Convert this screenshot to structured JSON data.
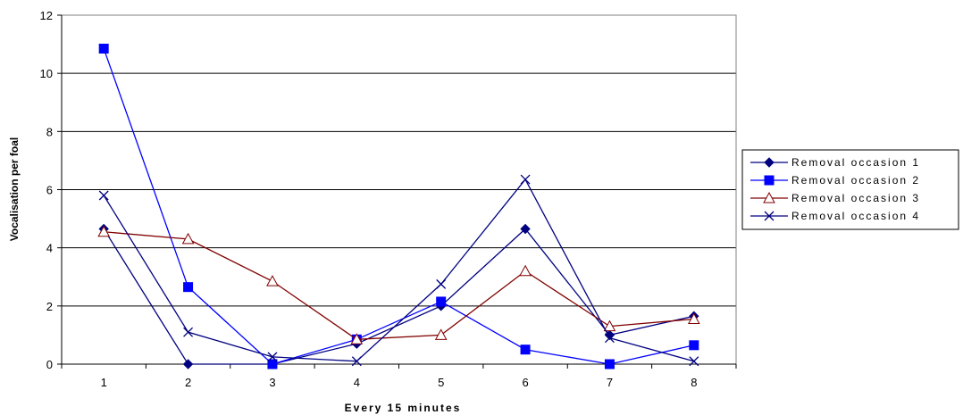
{
  "chart_data": {
    "type": "line",
    "title": "",
    "xlabel": "Every 15 minutes",
    "ylabel": "Vocalisation per foal",
    "categories": [
      "1",
      "2",
      "3",
      "4",
      "5",
      "6",
      "7",
      "8"
    ],
    "yticks": [
      "0",
      "2",
      "4",
      "6",
      "8",
      "10",
      "12"
    ],
    "ylim": [
      0,
      12
    ],
    "grid": "horizontal",
    "legend_position": "right",
    "series": [
      {
        "name": "Removal occasion 1",
        "color": "#000080",
        "marker": "diamond",
        "values": [
          4.65,
          0,
          0,
          0.7,
          2.0,
          4.65,
          1.0,
          1.65
        ]
      },
      {
        "name": "Removal occasion 2",
        "color": "#0000ff",
        "marker": "square",
        "values": [
          10.85,
          2.65,
          0,
          0.85,
          2.15,
          0.5,
          0,
          0.65
        ]
      },
      {
        "name": "Removal occasion 3",
        "color": "#800000",
        "marker": "triangle",
        "values": [
          4.55,
          4.3,
          2.85,
          0.85,
          1.0,
          3.2,
          1.3,
          1.55
        ]
      },
      {
        "name": "Removal occasion 4",
        "color": "#000080",
        "marker": "x",
        "values": [
          5.8,
          1.1,
          0.25,
          0.1,
          2.75,
          6.35,
          0.9,
          0.1
        ]
      }
    ]
  }
}
